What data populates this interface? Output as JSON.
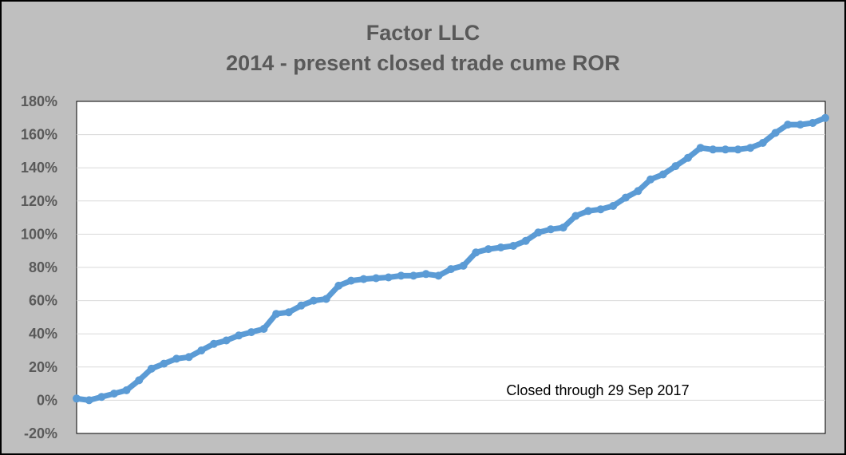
{
  "chart_data": {
    "type": "line",
    "title": "Factor LLC",
    "subtitle": "2014 - present closed trade cume ROR",
    "xlabel": "",
    "ylabel": "",
    "ylim": [
      -20,
      180
    ],
    "y_ticks": [
      -20,
      0,
      20,
      40,
      60,
      80,
      100,
      120,
      140,
      160,
      180
    ],
    "y_tick_labels": [
      "-20%",
      "0%",
      "20%",
      "40%",
      "60%",
      "80%",
      "100%",
      "120%",
      "140%",
      "160%",
      "180%"
    ],
    "grid": true,
    "legend": "none",
    "annotation": "Closed through 29 Sep 2017",
    "series_color": "#5b9bd5",
    "series": [
      {
        "x": [
          0,
          2,
          4,
          6,
          8,
          10,
          12,
          14,
          16,
          18,
          20,
          22,
          24,
          26,
          28,
          30,
          32,
          34,
          36,
          38,
          40,
          42,
          44,
          46,
          48,
          50,
          52,
          54,
          56,
          58,
          60,
          62,
          64,
          66,
          68,
          70,
          72,
          74,
          76,
          78,
          80,
          82,
          84,
          86,
          88,
          90,
          92,
          94,
          96,
          98,
          100
        ],
        "y": [
          1,
          0,
          2,
          4,
          6,
          12,
          19,
          22,
          25,
          26,
          30,
          34,
          36,
          39,
          41,
          43,
          52,
          53,
          57,
          60,
          61,
          69,
          72,
          73,
          73.5,
          74,
          75,
          75,
          76,
          75,
          79,
          81,
          89,
          91,
          92,
          93,
          96,
          101,
          103,
          104,
          111,
          114,
          115,
          117,
          122,
          126,
          133,
          136,
          141,
          146,
          152
        ]
      }
    ],
    "series_tail": {
      "x": [
        102,
        104,
        106,
        108,
        110,
        112,
        114,
        116,
        118,
        120
      ],
      "y": [
        151,
        151,
        151,
        152,
        155,
        161,
        166,
        166,
        167,
        170
      ]
    }
  }
}
